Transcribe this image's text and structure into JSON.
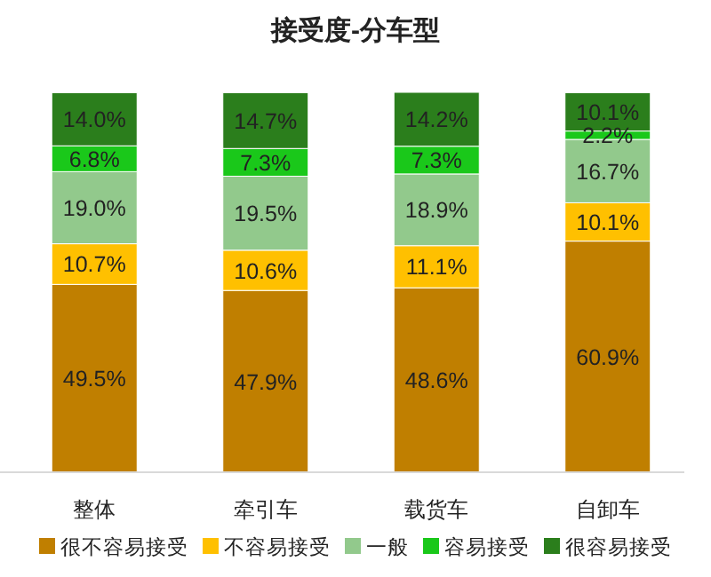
{
  "chart_data": {
    "type": "bar",
    "title": "接受度-分车型",
    "stacked": true,
    "legend": "bottom",
    "categories": [
      "整体",
      "牵引车",
      "载货车",
      "自卸车"
    ],
    "series": [
      {
        "name": "很不容易接受",
        "color": "#c07f00",
        "values": [
          49.5,
          47.9,
          48.6,
          60.9
        ],
        "value_labels": [
          "49.5%",
          "47.9%",
          "48.6%",
          "60.9%"
        ]
      },
      {
        "name": "不容易接受",
        "color": "#ffc000",
        "values": [
          10.7,
          10.6,
          11.1,
          10.1
        ],
        "value_labels": [
          "10.7%",
          "10.6%",
          "11.1%",
          "10.1%"
        ]
      },
      {
        "name": "一般",
        "color": "#92c98c",
        "values": [
          19.0,
          19.5,
          18.9,
          16.7
        ],
        "value_labels": [
          "19.0%",
          "19.5%",
          "18.9%",
          "16.7%"
        ]
      },
      {
        "name": "容易接受",
        "color": "#1ac81a",
        "values": [
          6.8,
          7.3,
          7.3,
          2.2
        ],
        "value_labels": [
          "6.8%",
          "7.3%",
          "7.3%",
          "2.2%"
        ]
      },
      {
        "name": "很容易接受",
        "color": "#2b7e1c",
        "values": [
          14.0,
          14.7,
          14.2,
          10.1
        ],
        "value_labels": [
          "14.0%",
          "14.7%",
          "14.2%",
          "10.1%"
        ]
      }
    ]
  }
}
